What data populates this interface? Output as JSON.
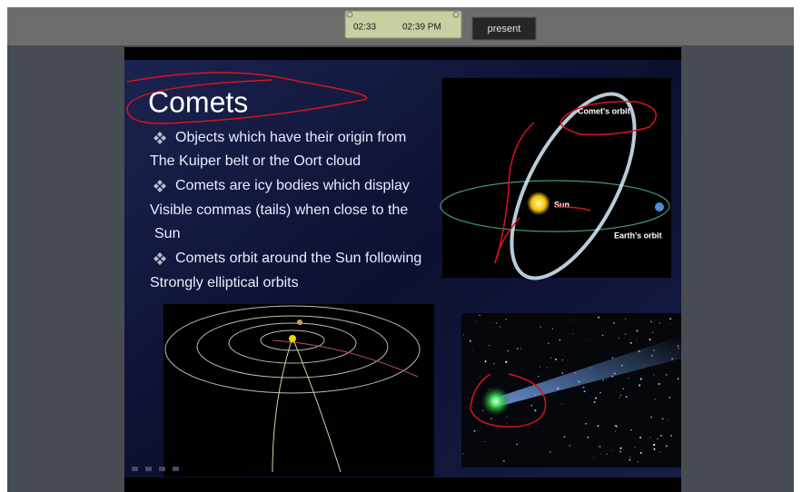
{
  "toolbar": {
    "timer": {
      "elapsed": "02:33",
      "clock": "02:39 PM"
    },
    "present_button": "present"
  },
  "slide": {
    "title": "Comets",
    "lines": [
      {
        "text": "Objects which have their origin from",
        "bullet": true
      },
      {
        "text": "The Kuiper belt or the Oort cloud",
        "bullet": false
      },
      {
        "text": "Comets are icy bodies which display",
        "bullet": true
      },
      {
        "text": "Visible commas (tails) when close to the",
        "bullet": false
      },
      {
        "text": "Sun",
        "bullet": false
      },
      {
        "text": "Comets orbit around the Sun following",
        "bullet": true
      },
      {
        "text": "Strongly elliptical orbits",
        "bullet": false
      }
    ],
    "diagram_labels": {
      "comet_orbit": "Comet's orbit",
      "sun": "Sun",
      "earth_orbit": "Earth's orbit"
    }
  }
}
